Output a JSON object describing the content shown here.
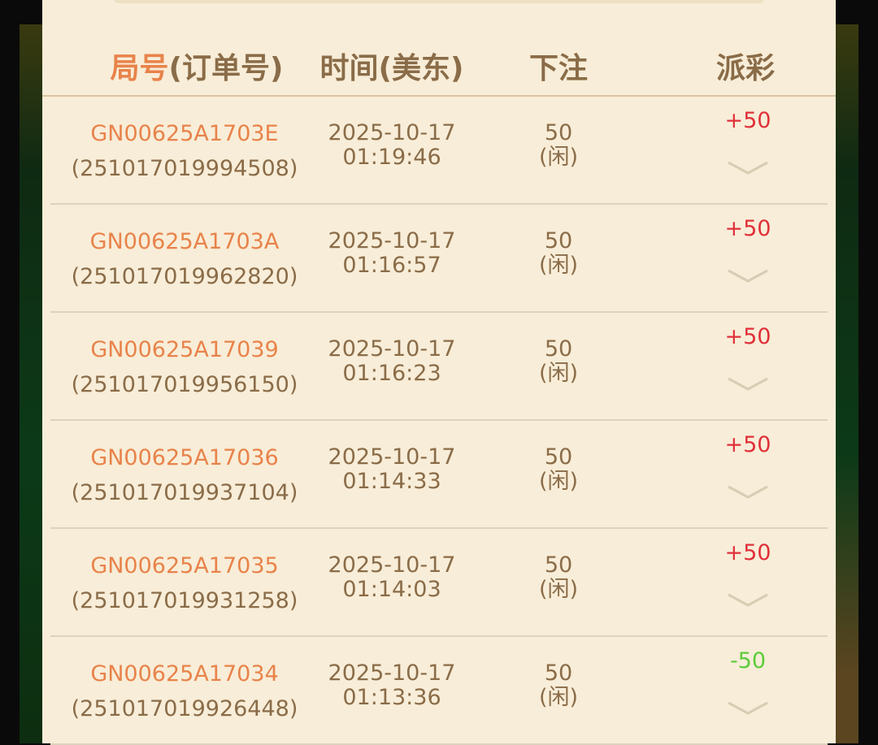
{
  "header": {
    "col1_accent": "局号",
    "col1_rest": "(订单号)",
    "col2": "时间(美东)",
    "col3": "下注",
    "col4": "派彩"
  },
  "colors": {
    "win": "#e0303a",
    "lose": "#5ccc3a",
    "accent": "#e8834a",
    "text": "#8a6c48"
  },
  "rows": [
    {
      "game_id": "GN00625A1703E",
      "order": "(251017019994508)",
      "date": "2025-10-17",
      "time": "01:19:46",
      "bet": "50",
      "side": "(闲)",
      "payout": "+50",
      "result": "win"
    },
    {
      "game_id": "GN00625A1703A",
      "order": "(251017019962820)",
      "date": "2025-10-17",
      "time": "01:16:57",
      "bet": "50",
      "side": "(闲)",
      "payout": "+50",
      "result": "win"
    },
    {
      "game_id": "GN00625A17039",
      "order": "(251017019956150)",
      "date": "2025-10-17",
      "time": "01:16:23",
      "bet": "50",
      "side": "(闲)",
      "payout": "+50",
      "result": "win"
    },
    {
      "game_id": "GN00625A17036",
      "order": "(251017019937104)",
      "date": "2025-10-17",
      "time": "01:14:33",
      "bet": "50",
      "side": "(闲)",
      "payout": "+50",
      "result": "win"
    },
    {
      "game_id": "GN00625A17035",
      "order": "(251017019931258)",
      "date": "2025-10-17",
      "time": "01:14:03",
      "bet": "50",
      "side": "(闲)",
      "payout": "+50",
      "result": "win"
    },
    {
      "game_id": "GN00625A17034",
      "order": "(251017019926448)",
      "date": "2025-10-17",
      "time": "01:13:36",
      "bet": "50",
      "side": "(闲)",
      "payout": "-50",
      "result": "lose"
    }
  ]
}
